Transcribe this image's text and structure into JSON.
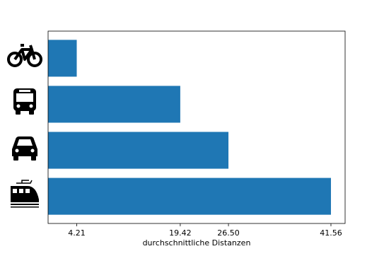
{
  "chart_data": {
    "type": "barh",
    "categories": [
      null,
      null,
      null,
      null
    ],
    "values": [
      4.21,
      19.42,
      26.5,
      41.56
    ],
    "color": "#1f77b4",
    "xlim": [
      0,
      43.64
    ],
    "xticks": [
      4.21,
      19.42,
      {
        "value": 26.5,
        "label": "26.50"
      },
      41.56
    ],
    "xlabel": "durchschnittliche Distanzen"
  }
}
